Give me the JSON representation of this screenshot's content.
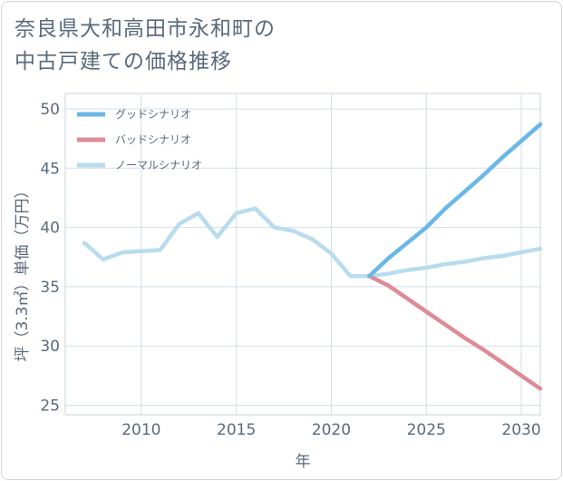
{
  "chart_data": {
    "type": "line",
    "title_lines": [
      "奈良県大和高田市永和町の",
      "中古戸建ての価格推移"
    ],
    "xlabel": "年",
    "ylabel": "坪（3.3㎡）単価（万円）",
    "xlim": [
      2006.0,
      2031.0
    ],
    "ylim": [
      24.2,
      51.3
    ],
    "xticks": [
      2010,
      2015,
      2020,
      2025,
      2030
    ],
    "yticks": [
      25,
      30,
      35,
      40,
      45,
      50
    ],
    "legend_position": "top-left",
    "series": [
      {
        "name": "グッドシナリオ",
        "color": "#6ab7e8",
        "points": [
          [
            2022,
            35.9
          ],
          [
            2023,
            37.4
          ],
          [
            2024,
            38.7
          ],
          [
            2025,
            40.0
          ],
          [
            2026,
            41.6
          ],
          [
            2027,
            43.0
          ],
          [
            2028,
            44.4
          ],
          [
            2029,
            45.9
          ],
          [
            2030,
            47.3
          ],
          [
            2031,
            48.7
          ]
        ]
      },
      {
        "name": "バッドシナリオ",
        "color": "#de8b95",
        "points": [
          [
            2022,
            35.9
          ],
          [
            2023,
            35.1
          ],
          [
            2024,
            34.0
          ],
          [
            2025,
            32.9
          ],
          [
            2026,
            31.8
          ],
          [
            2027,
            30.7
          ],
          [
            2028,
            29.7
          ],
          [
            2029,
            28.6
          ],
          [
            2030,
            27.5
          ],
          [
            2031,
            26.4
          ]
        ]
      },
      {
        "name": "ノーマルシナリオ",
        "color": "#b8dced",
        "points": [
          [
            2007,
            38.7
          ],
          [
            2008,
            37.3
          ],
          [
            2009,
            37.9
          ],
          [
            2010,
            38.0
          ],
          [
            2011,
            38.1
          ],
          [
            2012,
            40.3
          ],
          [
            2013,
            41.2
          ],
          [
            2014,
            39.2
          ],
          [
            2015,
            41.2
          ],
          [
            2016,
            41.6
          ],
          [
            2017,
            40.0
          ],
          [
            2018,
            39.7
          ],
          [
            2019,
            39.0
          ],
          [
            2020,
            37.8
          ],
          [
            2021,
            35.9
          ],
          [
            2022,
            35.9
          ],
          [
            2023,
            36.1
          ],
          [
            2024,
            36.4
          ],
          [
            2025,
            36.6
          ],
          [
            2026,
            36.9
          ],
          [
            2027,
            37.1
          ],
          [
            2028,
            37.4
          ],
          [
            2029,
            37.6
          ],
          [
            2030,
            37.9
          ],
          [
            2031,
            38.2
          ]
        ]
      }
    ]
  }
}
